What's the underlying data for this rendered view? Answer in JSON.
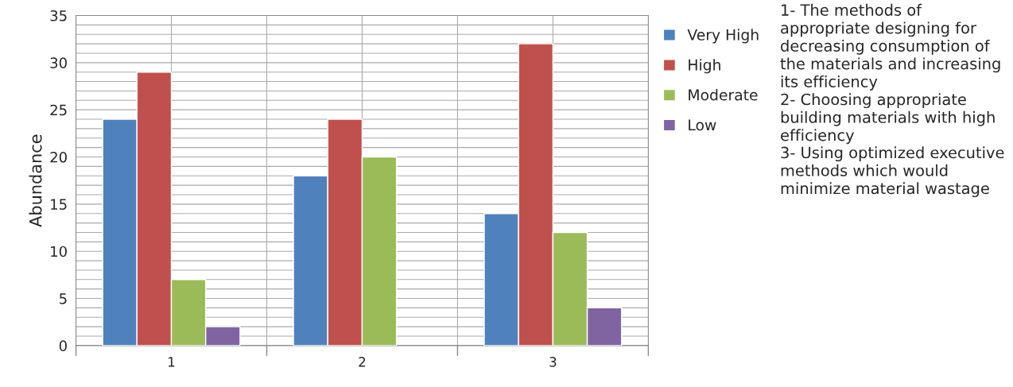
{
  "chart_data": {
    "type": "bar",
    "ylabel": "Abundance",
    "categories": [
      "1",
      "2",
      "3"
    ],
    "series": [
      {
        "name": "Very High",
        "color": "#4f81bd",
        "values": [
          24,
          18,
          14
        ]
      },
      {
        "name": "High",
        "color": "#c0504d",
        "values": [
          29,
          24,
          32
        ]
      },
      {
        "name": "Moderate",
        "color": "#9bbb59",
        "values": [
          7,
          20,
          12
        ]
      },
      {
        "name": "Low",
        "color": "#8064a2",
        "values": [
          2,
          null,
          4
        ]
      }
    ],
    "ylim": [
      0,
      35
    ],
    "yticks": [
      0,
      {
        "value": 1,
        "label": null
      },
      {
        "value": 2,
        "label": null
      },
      {
        "value": 3,
        "label": null
      },
      {
        "value": 4,
        "label": null
      },
      5,
      {
        "value": 6,
        "label": null
      },
      {
        "value": 7,
        "label": null
      },
      {
        "value": 8,
        "label": null
      },
      {
        "value": 9,
        "label": null
      },
      10,
      {
        "value": 11,
        "label": null
      },
      {
        "value": 12,
        "label": null
      },
      {
        "value": 13,
        "label": null
      },
      {
        "value": 14,
        "label": null
      },
      15,
      {
        "value": 16,
        "label": null
      },
      {
        "value": 17,
        "label": null
      },
      {
        "value": 18,
        "label": null
      },
      {
        "value": 19,
        "label": null
      },
      20,
      {
        "value": 21,
        "label": null
      },
      {
        "value": 22,
        "label": null
      },
      {
        "value": 23,
        "label": null
      },
      {
        "value": 24,
        "label": null
      },
      25,
      {
        "value": 26,
        "label": null
      },
      {
        "value": 27,
        "label": null
      },
      {
        "value": 28,
        "label": null
      },
      {
        "value": 29,
        "label": null
      },
      30,
      {
        "value": 31,
        "label": null
      },
      {
        "value": 32,
        "label": null
      },
      {
        "value": 33,
        "label": null
      },
      {
        "value": 34,
        "label": null
      },
      35
    ],
    "grid": true,
    "legend": "right",
    "annotations": [
      "1- The methods of appropriate designing for decreasing consumption of the materials and increasing its efficiency",
      "2- Choosing appropriate building materials with high efficiency",
      "3- Using optimized executive methods which would minimize material wastage"
    ]
  }
}
